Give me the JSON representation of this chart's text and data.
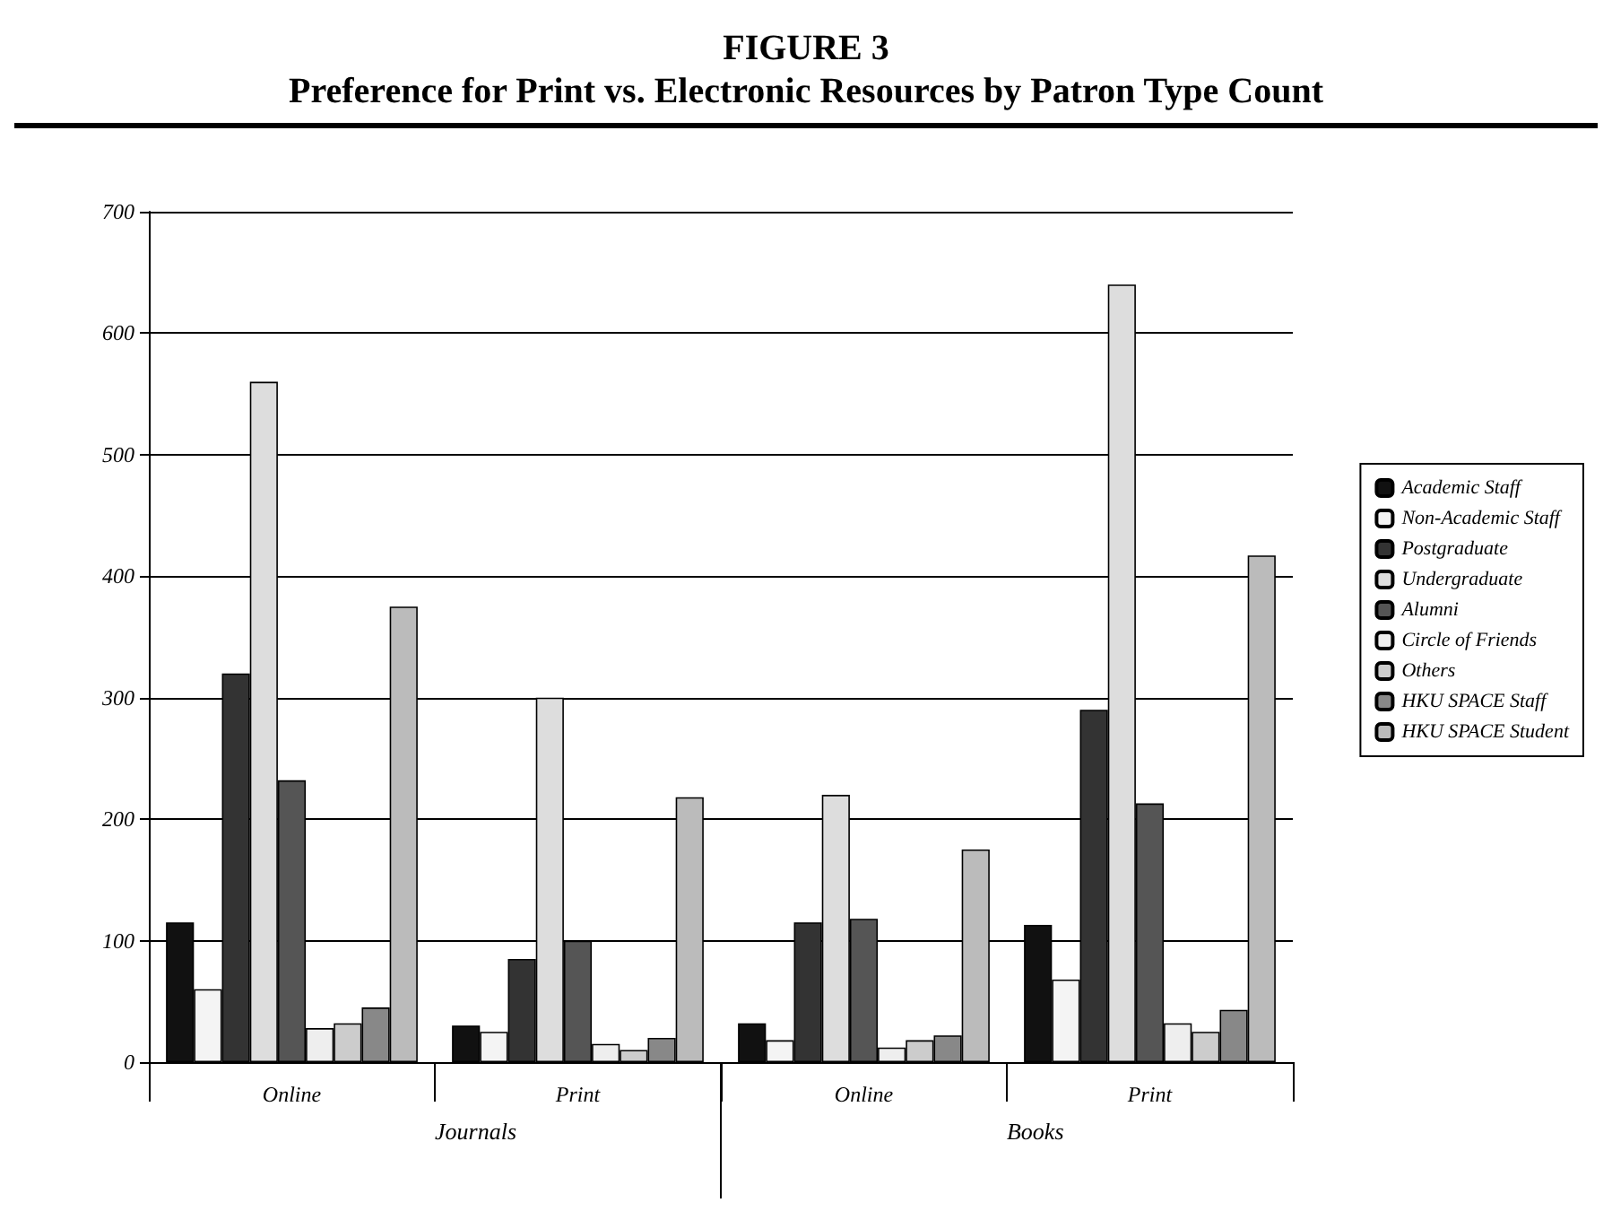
{
  "chart_data": {
    "type": "bar",
    "title": "FIGURE 3",
    "subtitle": "Preference for Print vs. Electronic Resources by Patron Type Count",
    "categories": [
      "Online",
      "Print",
      "Online",
      "Print"
    ],
    "annotations": [
      "Journals",
      "Books"
    ],
    "series": [
      {
        "name": "Academic Staff",
        "color": "#111111",
        "values": [
          115,
          30,
          32,
          113
        ]
      },
      {
        "name": "Non-Academic Staff",
        "color": "#f4f4f4",
        "values": [
          60,
          25,
          18,
          68
        ]
      },
      {
        "name": "Postgraduate",
        "color": "#333333",
        "values": [
          320,
          85,
          115,
          290
        ]
      },
      {
        "name": "Undergraduate",
        "color": "#dddddd",
        "values": [
          560,
          300,
          220,
          640
        ]
      },
      {
        "name": "Alumni",
        "color": "#555555",
        "values": [
          232,
          100,
          118,
          213
        ]
      },
      {
        "name": "Circle of Friends",
        "color": "#eeeeee",
        "values": [
          28,
          15,
          12,
          32
        ]
      },
      {
        "name": "Others",
        "color": "#cccccc",
        "values": [
          32,
          10,
          18,
          25
        ]
      },
      {
        "name": "HKU SPACE Staff",
        "color": "#888888",
        "values": [
          45,
          20,
          22,
          43
        ]
      },
      {
        "name": "HKU SPACE Student",
        "color": "#bbbbbb",
        "values": [
          375,
          218,
          175,
          417
        ]
      }
    ],
    "ylim": [
      0,
      700
    ],
    "yticks": [
      0,
      100,
      200,
      300,
      400,
      500,
      600,
      700
    ],
    "grid": "y",
    "legend": "right"
  }
}
